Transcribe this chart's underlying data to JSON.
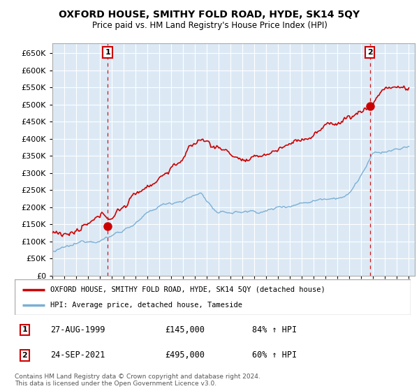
{
  "title": "OXFORD HOUSE, SMITHY FOLD ROAD, HYDE, SK14 5QY",
  "subtitle": "Price paid vs. HM Land Registry's House Price Index (HPI)",
  "ylabel_ticks": [
    0,
    50000,
    100000,
    150000,
    200000,
    250000,
    300000,
    350000,
    400000,
    450000,
    500000,
    550000,
    600000,
    650000
  ],
  "ylim": [
    0,
    680000
  ],
  "xlim_start": 1995.0,
  "xlim_end": 2025.5,
  "hpi_color": "#7bafd4",
  "property_color": "#cc0000",
  "background_color": "#ffffff",
  "plot_bg_color": "#dce9f5",
  "grid_color": "#ffffff",
  "transaction1_date": "27-AUG-1999",
  "transaction1_price": "£145,000",
  "transaction1_hpi": "84% ↑ HPI",
  "transaction1_year": 1999.65,
  "transaction1_value": 145000,
  "transaction2_date": "24-SEP-2021",
  "transaction2_price": "£495,000",
  "transaction2_hpi": "60% ↑ HPI",
  "transaction2_year": 2021.72,
  "transaction2_value": 495000,
  "legend_label_property": "OXFORD HOUSE, SMITHY FOLD ROAD, HYDE, SK14 5QY (detached house)",
  "legend_label_hpi": "HPI: Average price, detached house, Tameside",
  "footer": "Contains HM Land Registry data © Crown copyright and database right 2024.\nThis data is licensed under the Open Government Licence v3.0."
}
